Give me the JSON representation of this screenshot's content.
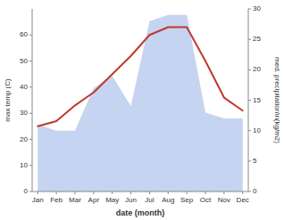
{
  "chart_data": {
    "type": "line",
    "xlabel": "date (month)",
    "ylabel": "max temp (C)",
    "y2label": "med. precipitation\\n(kg/m2)",
    "categories": [
      "Jan",
      "Feb",
      "Mar",
      "Apr",
      "May",
      "Jun",
      "Jul",
      "Aug",
      "Sep",
      "Oct",
      "Nov",
      "Dec"
    ],
    "series": [
      {
        "type": "area",
        "axis": "y2",
        "color": "#c5d4f0",
        "values": [
          11,
          10,
          10,
          17,
          19,
          14,
          28,
          29,
          29,
          13,
          12,
          12
        ]
      },
      {
        "type": "line",
        "color": "#c0392b",
        "values": [
          25,
          27,
          33,
          38,
          45,
          52,
          60,
          63,
          63,
          50,
          36,
          31
        ]
      }
    ],
    "ylim": [
      0,
      70
    ],
    "yticks": [
      0,
      10,
      20,
      30,
      40,
      50,
      60
    ],
    "y2lim": [
      0,
      30
    ],
    "y2ticks": [
      0,
      5,
      10,
      15,
      20,
      25,
      30
    ],
    "grid": false
  }
}
